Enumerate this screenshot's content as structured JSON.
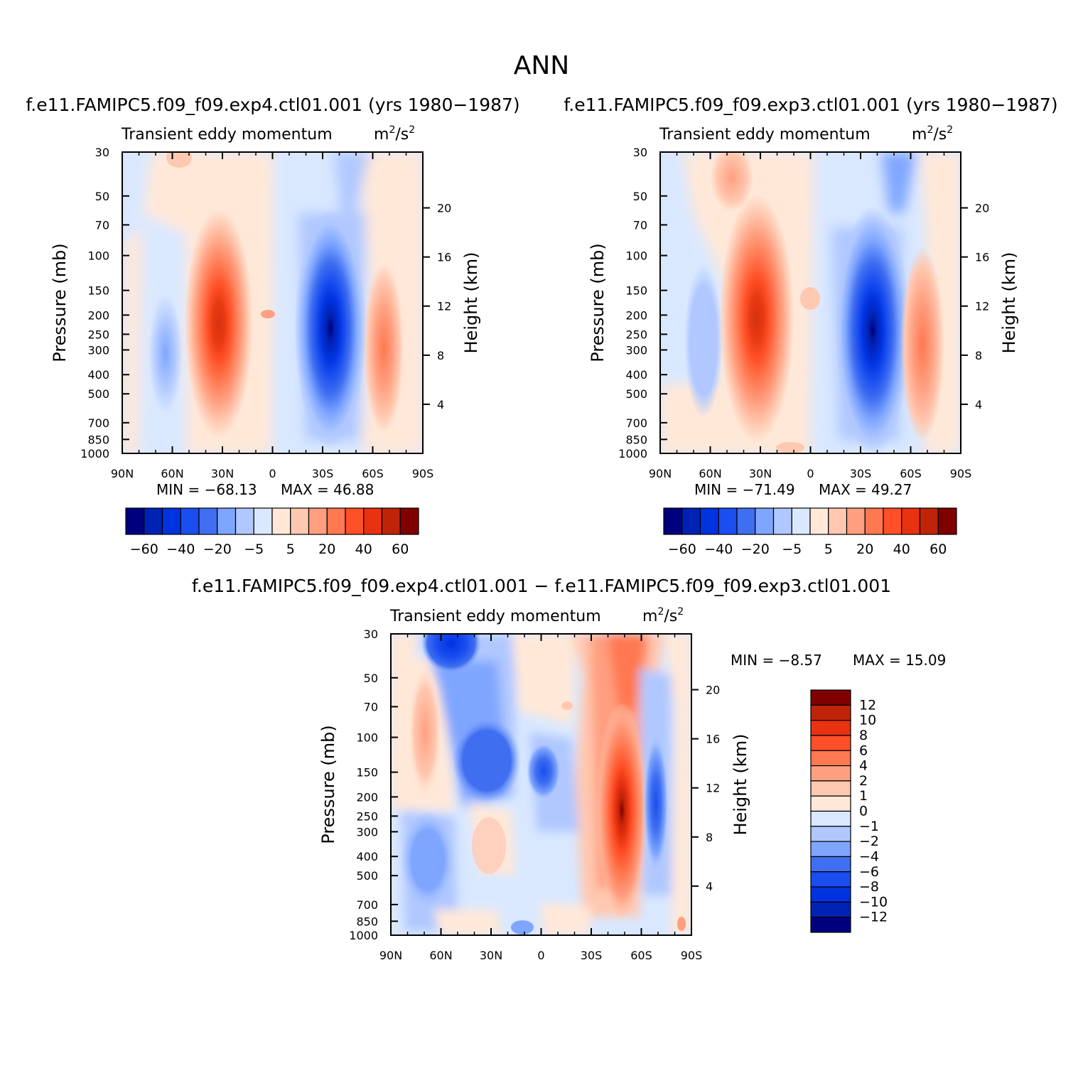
{
  "page": {
    "title": "ANN",
    "panel_titles": [
      "f.e11.FAMIPC5.f09_f09.exp4.ctl01.001 (yrs 1980-1987)",
      "f.e11.FAMIPC5.f09_f09.exp3.ctl01.001 (yrs 1980-1987)",
      "f.e11.FAMIPC5.f09_f09.exp4.ctl01.001 - f.e11.FAMIPC5.f09_f09.exp3.ctl01.001"
    ],
    "variable": "Transient eddy momentum",
    "units_base": "m",
    "units_mid": "/s",
    "units_exp": "2",
    "ylabel_left": "Pressure (mb)",
    "ylabel_right": "Height (km)"
  },
  "chart_data": [
    {
      "type": "heatmap",
      "name": "exp4",
      "title": "f.e11.FAMIPC5.f09_f09.exp4.ctl01.001 (yrs 1980-1987)",
      "x_ticks": [
        "90N",
        "60N",
        "30N",
        "0",
        "30S",
        "60S",
        "90S"
      ],
      "y_ticks": [
        "30",
        "50",
        "70",
        "100",
        "150",
        "200",
        "250",
        "300",
        "400",
        "500",
        "700",
        "850",
        "1000"
      ],
      "height_ticks": [
        "4",
        "8",
        "12",
        "16",
        "20"
      ],
      "min_label": "MIN = -68.13",
      "max_label": "MAX = 46.88",
      "cbar_labels": [
        "-60",
        "-40",
        "-20",
        "-5",
        "5",
        "20",
        "40",
        "60"
      ],
      "colors": [
        "#00007f",
        "#0022b4",
        "#0033e0",
        "#1a4ef0",
        "#3f6ef0",
        "#7fa6ff",
        "#b0c8ff",
        "#d9e8ff",
        "#ffe8d8",
        "#ffc8b0",
        "#ff9f80",
        "#ff7850",
        "#ff5028",
        "#e83210",
        "#c02408",
        "#800000"
      ],
      "features": [
        {
          "lat": 33,
          "p": 220,
          "value": 46.88
        },
        {
          "lat": -35,
          "p": 240,
          "value": -68.13
        },
        {
          "lat": -68,
          "p": 320,
          "value": 30
        },
        {
          "lat": 64,
          "p": 320,
          "value": -12
        }
      ]
    },
    {
      "type": "heatmap",
      "name": "exp3",
      "title": "f.e11.FAMIPC5.f09_f09.exp3.ctl01.001 (yrs 1980-1987)",
      "x_ticks": [
        "90N",
        "60N",
        "30N",
        "0",
        "30S",
        "60S",
        "90S"
      ],
      "y_ticks": [
        "30",
        "50",
        "70",
        "100",
        "150",
        "200",
        "250",
        "300",
        "400",
        "500",
        "700",
        "850",
        "1000"
      ],
      "height_ticks": [
        "4",
        "8",
        "12",
        "16",
        "20"
      ],
      "min_label": "MIN = -71.49",
      "max_label": "MAX = 49.27",
      "cbar_labels": [
        "-60",
        "-40",
        "-20",
        "-5",
        "5",
        "20",
        "40",
        "60"
      ],
      "colors": [
        "#00007f",
        "#0022b4",
        "#0033e0",
        "#1a4ef0",
        "#3f6ef0",
        "#7fa6ff",
        "#b0c8ff",
        "#d9e8ff",
        "#ffe8d8",
        "#ffc8b0",
        "#ff9f80",
        "#ff7850",
        "#ff5028",
        "#e83210",
        "#c02408",
        "#800000"
      ],
      "features": [
        {
          "lat": 30,
          "p": 220,
          "value": 49.27
        },
        {
          "lat": -38,
          "p": 250,
          "value": -71.49
        },
        {
          "lat": -68,
          "p": 320,
          "value": 28
        },
        {
          "lat": 64,
          "p": 320,
          "value": -12
        }
      ]
    },
    {
      "type": "heatmap",
      "name": "difference",
      "title": "f.e11.FAMIPC5.f09_f09.exp4.ctl01.001 - f.e11.FAMIPC5.f09_f09.exp3.ctl01.001",
      "x_ticks": [
        "90N",
        "60N",
        "30N",
        "0",
        "30S",
        "60S",
        "90S"
      ],
      "y_ticks": [
        "30",
        "50",
        "70",
        "100",
        "150",
        "200",
        "250",
        "300",
        "400",
        "500",
        "700",
        "850",
        "1000"
      ],
      "height_ticks": [
        "4",
        "8",
        "12",
        "16",
        "20"
      ],
      "min_label": "MIN = -8.57",
      "max_label": "MAX = 15.09",
      "cbar_labels": [
        "12",
        "10",
        "8",
        "6",
        "4",
        "2",
        "1",
        "0",
        "-1",
        "-2",
        "-4",
        "-6",
        "-8",
        "-10",
        "-12"
      ],
      "colors": [
        "#800000",
        "#c02408",
        "#e83210",
        "#ff5028",
        "#ff7850",
        "#ff9f80",
        "#ffc8b0",
        "#ffe8d8",
        "#d9e8ff",
        "#b0c8ff",
        "#7fa6ff",
        "#3f6ef0",
        "#1a4ef0",
        "#0033e0",
        "#0022b4",
        "#00007f"
      ],
      "features": [
        {
          "lat": -48,
          "p": 220,
          "value": 15.09
        },
        {
          "lat": -48,
          "p": 40,
          "value": 6
        },
        {
          "lat": 48,
          "p": 40,
          "value": -8.57
        },
        {
          "lat": 35,
          "p": 150,
          "value": -6
        },
        {
          "lat": 0,
          "p": 150,
          "value": -6
        },
        {
          "lat": -70,
          "p": 220,
          "value": -6
        },
        {
          "lat": 75,
          "p": 100,
          "value": 4
        },
        {
          "lat": 75,
          "p": 350,
          "value": -4
        },
        {
          "lat": 23,
          "p": 320,
          "value": 2
        }
      ]
    }
  ]
}
